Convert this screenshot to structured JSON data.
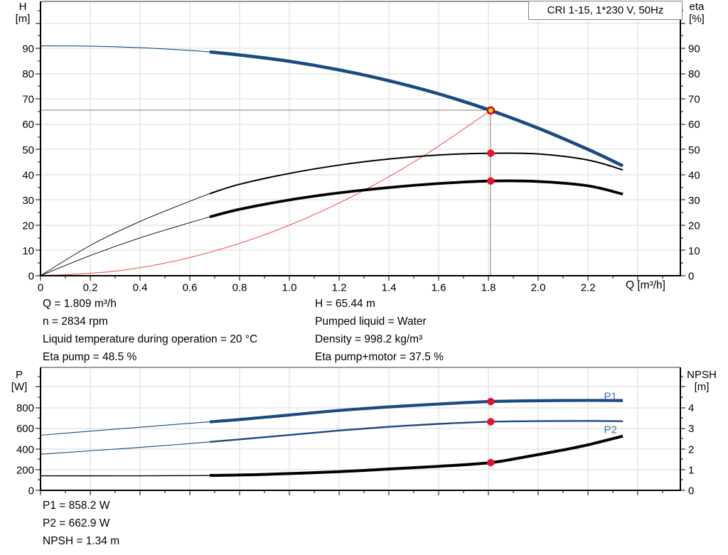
{
  "title": "CRI 1-15, 1*230 V, 50Hz",
  "info_left": [
    "Q = 1.809 m³/h",
    "n = 2834 rpm",
    "Liquid temperature during operation = 20 °C",
    "Eta pump = 48.5 %"
  ],
  "info_right": [
    "H = 65.44 m",
    "Pumped liquid = Water",
    "Density = 998.2 kg/m³",
    "Eta pump+motor = 37.5 %"
  ],
  "info_bottom": [
    "P1 = 858.2 W",
    "P2 = 662.9 W",
    "NPSH = 1.34 m"
  ],
  "colors": {
    "curve_blue": "#1A4B80",
    "label_blue": "#3B6EA5",
    "black": "#000000",
    "red_dot": "#E8112D",
    "duty_fill": "#FFE400",
    "duty_ring": "#D9000D",
    "system_red": "#E95C55",
    "grid": "#D9D9D9",
    "op_line": "#7F7F7F",
    "border_gray": "#9A9A9A"
  },
  "chart_data": [
    {
      "type": "line",
      "title": "CRI 1-15, 1*230 V, 50Hz",
      "x_axis": {
        "caption": "Q [m³/h]",
        "min": 0,
        "max": 2.571,
        "major": 0.2,
        "minor": 0.1,
        "major_max": 2.4,
        "minor_max": 2.5,
        "labeled": [
          0,
          0.2,
          0.4,
          0.6,
          0.8,
          1.0,
          1.2,
          1.4,
          1.6,
          1.8,
          2.0,
          2.2
        ],
        "label_texts": [
          "0",
          "0.2",
          "0.4",
          "0.6",
          "0.8",
          "1.0",
          "1.2",
          "1.4",
          "1.6",
          "1.8",
          "2.0",
          "2.2"
        ]
      },
      "y_left": {
        "caption": [
          "H",
          "[m]"
        ],
        "min": 0,
        "max": 108.6,
        "major": 10,
        "minor": 5,
        "major_max": 100,
        "minor_max": 105,
        "labeled_max": 90
      },
      "y_right": {
        "caption": [
          "eta",
          "[%]"
        ],
        "min": 0,
        "max": 108.6,
        "major": 10,
        "minor": 5,
        "major_max": 100,
        "minor_max": 105,
        "labeled_max": 90
      },
      "op_point": {
        "q": 1.809,
        "v": 65.44
      },
      "series": [
        {
          "name": "system curve",
          "axis": "left",
          "color": "#E95C55",
          "width_thin": 1.1,
          "width_thick": 1.1,
          "split_at": 99,
          "points": [
            [
              0,
              0
            ],
            [
              0.3,
              1.8
            ],
            [
              0.6,
              7.2
            ],
            [
              0.9,
              16.2
            ],
            [
              1.2,
              28.8
            ],
            [
              1.5,
              45.0
            ],
            [
              1.809,
              65.44
            ]
          ]
        },
        {
          "name": "eta pump",
          "axis": "left",
          "color": "#000000",
          "split_at": 0.68,
          "width_thin": 0.9,
          "width_thick": 2.0,
          "points": [
            [
              0,
              0
            ],
            [
              0.2,
              12
            ],
            [
              0.4,
              21.5
            ],
            [
              0.6,
              29.5
            ],
            [
              0.68,
              32.5
            ],
            [
              0.8,
              36.2
            ],
            [
              1.0,
              40.5
            ],
            [
              1.2,
              43.8
            ],
            [
              1.4,
              46.2
            ],
            [
              1.6,
              47.8
            ],
            [
              1.809,
              48.5
            ],
            [
              2.0,
              48.2
            ],
            [
              2.2,
              45.8
            ],
            [
              2.34,
              41.9
            ]
          ]
        },
        {
          "name": "eta pump+motor",
          "axis": "left",
          "color": "#000000",
          "split_at": 0.68,
          "width_thin": 0.9,
          "width_thick": 3.8,
          "points": [
            [
              0,
              0
            ],
            [
              0.2,
              8
            ],
            [
              0.4,
              15
            ],
            [
              0.6,
              21
            ],
            [
              0.68,
              23.3
            ],
            [
              0.8,
              26.3
            ],
            [
              1.0,
              30
            ],
            [
              1.2,
              32.8
            ],
            [
              1.4,
              34.9
            ],
            [
              1.6,
              36.5
            ],
            [
              1.809,
              37.5
            ],
            [
              2.0,
              37.3
            ],
            [
              2.2,
              35.6
            ],
            [
              2.34,
              32.3
            ]
          ]
        },
        {
          "name": "H",
          "axis": "left",
          "color": "#1A4B80",
          "split_at": 0.68,
          "width_thin": 1.1,
          "width_thick": 4.6,
          "points": [
            [
              0,
              91
            ],
            [
              0.2,
              90.9
            ],
            [
              0.4,
              90.3
            ],
            [
              0.6,
              89.2
            ],
            [
              0.68,
              88.6
            ],
            [
              0.8,
              87.4
            ],
            [
              1.0,
              84.9
            ],
            [
              1.2,
              81.5
            ],
            [
              1.4,
              77.2
            ],
            [
              1.6,
              72.0
            ],
            [
              1.809,
              65.44
            ],
            [
              2.0,
              58.4
            ],
            [
              2.2,
              50.0
            ],
            [
              2.34,
              43.5
            ]
          ]
        }
      ],
      "dots": [
        {
          "q": 1.809,
          "v": 48.5,
          "axis": "left"
        },
        {
          "q": 1.809,
          "v": 37.5,
          "axis": "left"
        }
      ]
    },
    {
      "type": "line",
      "x_axis": {
        "min": 0,
        "max": 2.571,
        "major": 0.2,
        "minor": 0.1,
        "major_max": 2.4,
        "minor_max": 2.5,
        "labeled": [],
        "label_texts": []
      },
      "y_left": {
        "caption": [
          "P",
          "[W]"
        ],
        "min": 0,
        "max": 1188,
        "major": 200,
        "minor": 100,
        "major_max": 1000,
        "minor_max": 1100,
        "labeled_max": 800
      },
      "y_right": {
        "caption": [
          "NPSH",
          "[m]"
        ],
        "min": 0,
        "max": 5.94,
        "major": 1,
        "minor": 0.5,
        "major_max": 5,
        "minor_max": 5.5,
        "labeled_max": 4
      },
      "series": [
        {
          "name": "NPSH",
          "axis": "right",
          "color": "#000000",
          "split_at": 0.68,
          "width_thin": 1.4,
          "width_thick": 4.0,
          "points": [
            [
              0,
              0.7
            ],
            [
              0.3,
              0.7
            ],
            [
              0.6,
              0.71
            ],
            [
              0.68,
              0.72
            ],
            [
              0.9,
              0.77
            ],
            [
              1.2,
              0.9
            ],
            [
              1.4,
              1.03
            ],
            [
              1.6,
              1.16
            ],
            [
              1.809,
              1.34
            ],
            [
              1.95,
              1.62
            ],
            [
              2.1,
              1.95
            ],
            [
              2.2,
              2.2
            ],
            [
              2.34,
              2.62
            ]
          ]
        },
        {
          "name": "P2",
          "axis": "left",
          "color": "#1A4B80",
          "split_at": 0.68,
          "width_thin": 1.1,
          "width_thick": 2.4,
          "label": {
            "text": "P2",
            "q": 2.29,
            "v": 585
          },
          "points": [
            [
              0,
              349
            ],
            [
              0.2,
              382
            ],
            [
              0.4,
              415
            ],
            [
              0.6,
              452
            ],
            [
              0.68,
              468
            ],
            [
              0.8,
              492
            ],
            [
              1.0,
              535
            ],
            [
              1.2,
              578
            ],
            [
              1.4,
              614
            ],
            [
              1.6,
              642
            ],
            [
              1.809,
              662.9
            ],
            [
              2.0,
              669
            ],
            [
              2.2,
              671
            ],
            [
              2.34,
              668
            ]
          ]
        },
        {
          "name": "P1",
          "axis": "left",
          "color": "#1A4B80",
          "split_at": 0.68,
          "width_thin": 1.1,
          "width_thick": 4.2,
          "label": {
            "text": "P1",
            "q": 2.29,
            "v": 905
          },
          "points": [
            [
              0,
              533
            ],
            [
              0.2,
              572
            ],
            [
              0.4,
              610
            ],
            [
              0.6,
              648
            ],
            [
              0.68,
              662
            ],
            [
              0.8,
              684
            ],
            [
              1.0,
              728
            ],
            [
              1.2,
              772
            ],
            [
              1.4,
              806
            ],
            [
              1.6,
              834
            ],
            [
              1.809,
              858.2
            ],
            [
              2.0,
              866
            ],
            [
              2.2,
              869
            ],
            [
              2.34,
              868
            ]
          ]
        }
      ],
      "dots": [
        {
          "q": 1.809,
          "v": 858.2,
          "axis": "left"
        },
        {
          "q": 1.809,
          "v": 662.9,
          "axis": "left"
        },
        {
          "q": 1.809,
          "v": 1.34,
          "axis": "right"
        }
      ]
    }
  ]
}
